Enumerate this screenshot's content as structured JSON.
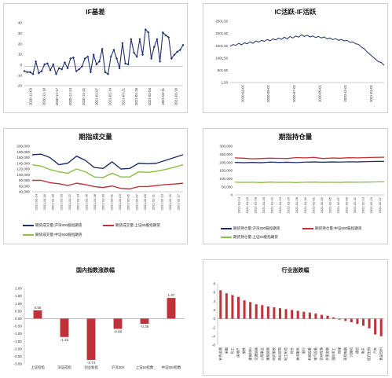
{
  "colors": {
    "navy": "#1f2f6b",
    "red": "#c0323a",
    "green": "#8cbf45",
    "axis": "#999999",
    "grid": "#e2e2e2"
  },
  "chart_data": [
    {
      "type": "line",
      "title": "IF基差",
      "x_ticks": [
        "2020-12-03",
        "2020-12-10",
        "2020-12-17",
        "2020-12-24",
        "2020-12-31",
        "2021-01-07",
        "2021-01-14",
        "2021-01-21",
        "2021-01-28",
        "2021-02-04",
        "2021-02-11",
        "2021-02-18"
      ],
      "y_ticks": [
        "40",
        "30",
        "20",
        "10",
        "0",
        "-10",
        "-20"
      ],
      "ylim": [
        -20,
        45
      ],
      "series": [
        {
          "color": "#1f2f6b",
          "marker": "diamond",
          "values": [
            -5,
            -6,
            -6,
            -8,
            5,
            -7,
            -5,
            2,
            3,
            -4,
            2,
            -8,
            -2,
            -3,
            4,
            -2,
            8,
            9,
            -5,
            -3,
            0,
            8,
            10,
            -6,
            12,
            2,
            5,
            18,
            -6,
            -8,
            10,
            17,
            8,
            -2,
            24,
            3,
            2,
            28,
            14,
            10,
            28,
            12,
            38,
            35,
            8,
            20,
            28,
            5,
            35,
            32,
            30,
            8,
            12,
            15,
            17,
            22
          ]
        }
      ]
    },
    {
      "type": "line",
      "title": "IC活跃-IF活跃",
      "x_ticks": [
        "2020-03-01",
        "2020-05-01",
        "2020-07-01",
        "2020-09-01",
        "2020-11-01",
        "2021-01-01"
      ],
      "y_ticks": [
        "2501.50",
        "2001.50",
        "1501.50",
        "1001.50",
        "501.50",
        "1.50"
      ],
      "ylim": [
        1.5,
        2501.5
      ],
      "series": [
        {
          "color": "#1f2f6b",
          "values": [
            1480,
            1550,
            1520,
            1600,
            1540,
            1620,
            1580,
            1660,
            1600,
            1700,
            1650,
            1720,
            1680,
            1760,
            1700,
            1780,
            1740,
            1820,
            1760,
            1850,
            1780,
            1880,
            1820,
            1900,
            1850,
            1950,
            1880,
            1930,
            1860,
            1900,
            1840,
            1880,
            1820,
            1860,
            1780,
            1820,
            1750,
            1790,
            1720,
            1760,
            1700,
            1720,
            1640,
            1660,
            1580,
            1560,
            1450,
            1380,
            1250,
            1150,
            1050,
            950,
            850,
            820,
            700
          ]
        }
      ]
    },
    {
      "type": "line",
      "title": "期指成交量",
      "x_ticks": [
        "2021-01-14",
        "2021-01-16",
        "2021-01-18",
        "2021-01-20",
        "2021-01-22",
        "2021-01-24",
        "2021-01-26",
        "2021-01-28",
        "2021-01-30",
        "2021-02-01",
        "2021-02-03",
        "2021-02-05",
        "2021-02-07",
        "2021-02-09",
        "2021-02-11",
        "2021-02-13",
        "2021-02-15",
        "2021-02-17"
      ],
      "y_ticks": [
        "200,000",
        "180,000",
        "160,000",
        "140,000",
        "120,000",
        "100,000",
        "80,000",
        "60,000",
        "40,000"
      ],
      "ylim": [
        40000,
        200000
      ],
      "series": [
        {
          "name": "期货成交量:沪深300股指期货",
          "color": "#1f2f6b",
          "values": [
            170000,
            172000,
            160000,
            135000,
            140000,
            165000,
            150000,
            125000,
            122000,
            145000,
            120000,
            122000,
            140000,
            138000,
            140000,
            150000,
            160000,
            170000
          ]
        },
        {
          "name": "期货成交量:上证50股指期货",
          "color": "#c0323a",
          "values": [
            80000,
            80000,
            72000,
            68000,
            62000,
            70000,
            65000,
            58000,
            55000,
            60000,
            52000,
            50000,
            58000,
            58000,
            62000,
            65000,
            67000,
            70000
          ]
        },
        {
          "name": "期货成交量:中证500股指期货",
          "color": "#8cbf45",
          "values": [
            135000,
            130000,
            118000,
            110000,
            105000,
            120000,
            110000,
            92000,
            90000,
            105000,
            92000,
            92000,
            110000,
            108000,
            112000,
            118000,
            126000,
            135000
          ]
        }
      ]
    },
    {
      "type": "line",
      "title": "期指持仓量",
      "x_ticks": [
        "2021-01-14",
        "2021-01-16",
        "2021-01-18",
        "2021-01-20",
        "2021-01-22",
        "2021-01-24",
        "2021-01-26",
        "2021-01-28",
        "2021-01-30",
        "2021-02-01",
        "2021-02-03",
        "2021-02-05",
        "2021-02-07",
        "2021-02-09",
        "2021-02-11",
        "2021-02-13",
        "2021-02-15",
        "2021-02-17"
      ],
      "y_ticks": [
        "300,000",
        "250,000",
        "200,000",
        "150,000",
        "100,000",
        "50,000",
        "0"
      ],
      "ylim": [
        0,
        300000
      ],
      "series": [
        {
          "name": "期货持仓量:沪深300股指期货",
          "color": "#1f2f6b",
          "values": [
            200000,
            198000,
            200000,
            198000,
            202000,
            200000,
            201000,
            199000,
            202000,
            203000,
            201000,
            203000,
            202000,
            204000,
            203000,
            205000,
            206000,
            207000
          ]
        },
        {
          "name": "期货持仓量:中证500股指期货",
          "color": "#c0323a",
          "values": [
            228000,
            226000,
            222000,
            224000,
            226000,
            225000,
            224000,
            230000,
            228000,
            231000,
            224000,
            227000,
            226000,
            229000,
            228000,
            230000,
            231000,
            232000
          ]
        },
        {
          "name": "期货持仓量:上证50股指期货",
          "color": "#8cbf45",
          "values": [
            78000,
            77000,
            78000,
            76000,
            79000,
            77000,
            78000,
            76000,
            78000,
            79000,
            77000,
            78000,
            77000,
            79000,
            78000,
            79000,
            80000,
            81000
          ]
        }
      ]
    },
    {
      "type": "bar",
      "title": "国内指数涨跌幅",
      "categories": [
        "上证综指",
        "深证成指",
        "创业板指",
        "沪深300",
        "上证50指数",
        "中证500指数"
      ],
      "values": [
        0.55,
        -1.22,
        -2.74,
        -0.68,
        -0.35,
        1.37
      ],
      "labels": [
        "0.55",
        "-1.22",
        "-2.74",
        "-0.68",
        "-0.35",
        "1.37"
      ],
      "y_ticks": [
        "2.00",
        "1.50",
        "1.00",
        "0.50",
        "0.00",
        "-0.50",
        "-1.00",
        "-1.50",
        "-2.00",
        "-2.50",
        "-3.00"
      ],
      "ylim": [
        -3,
        2
      ],
      "color": "#c0323a"
    },
    {
      "type": "bar",
      "title": "行业涨跌幅",
      "categories": [
        "有色金属",
        "采掘",
        "化工",
        "房地产",
        "钢铁",
        "建筑材料",
        "交通运输",
        "公用事业",
        "建筑装饰",
        "纺织服装",
        "商业贸易",
        "轻工制造",
        "综合",
        "休闲服务",
        "银行",
        "机械设备",
        "电气设备",
        "农林牧渔",
        "非银金融",
        "国防军工",
        "传媒",
        "家用电器",
        "计算机",
        "通信",
        "电子",
        "医药生物",
        "汽车",
        "食品饮料"
      ],
      "values": [
        6.5,
        5.8,
        5.4,
        5.0,
        4.2,
        3.8,
        3.3,
        3.1,
        2.8,
        2.6,
        2.4,
        2.2,
        2.0,
        1.8,
        1.6,
        1.4,
        1.2,
        0.9,
        0.7,
        0.3,
        -0.2,
        -0.5,
        -0.8,
        -1.2,
        -1.6,
        -2.2,
        -3.6,
        -4.0
      ],
      "y_ticks": [
        "8",
        "6",
        "4",
        "2",
        "0",
        "-2",
        "-4",
        "-6"
      ],
      "ylim": [
        -6,
        8
      ],
      "color": "#c0323a"
    }
  ]
}
